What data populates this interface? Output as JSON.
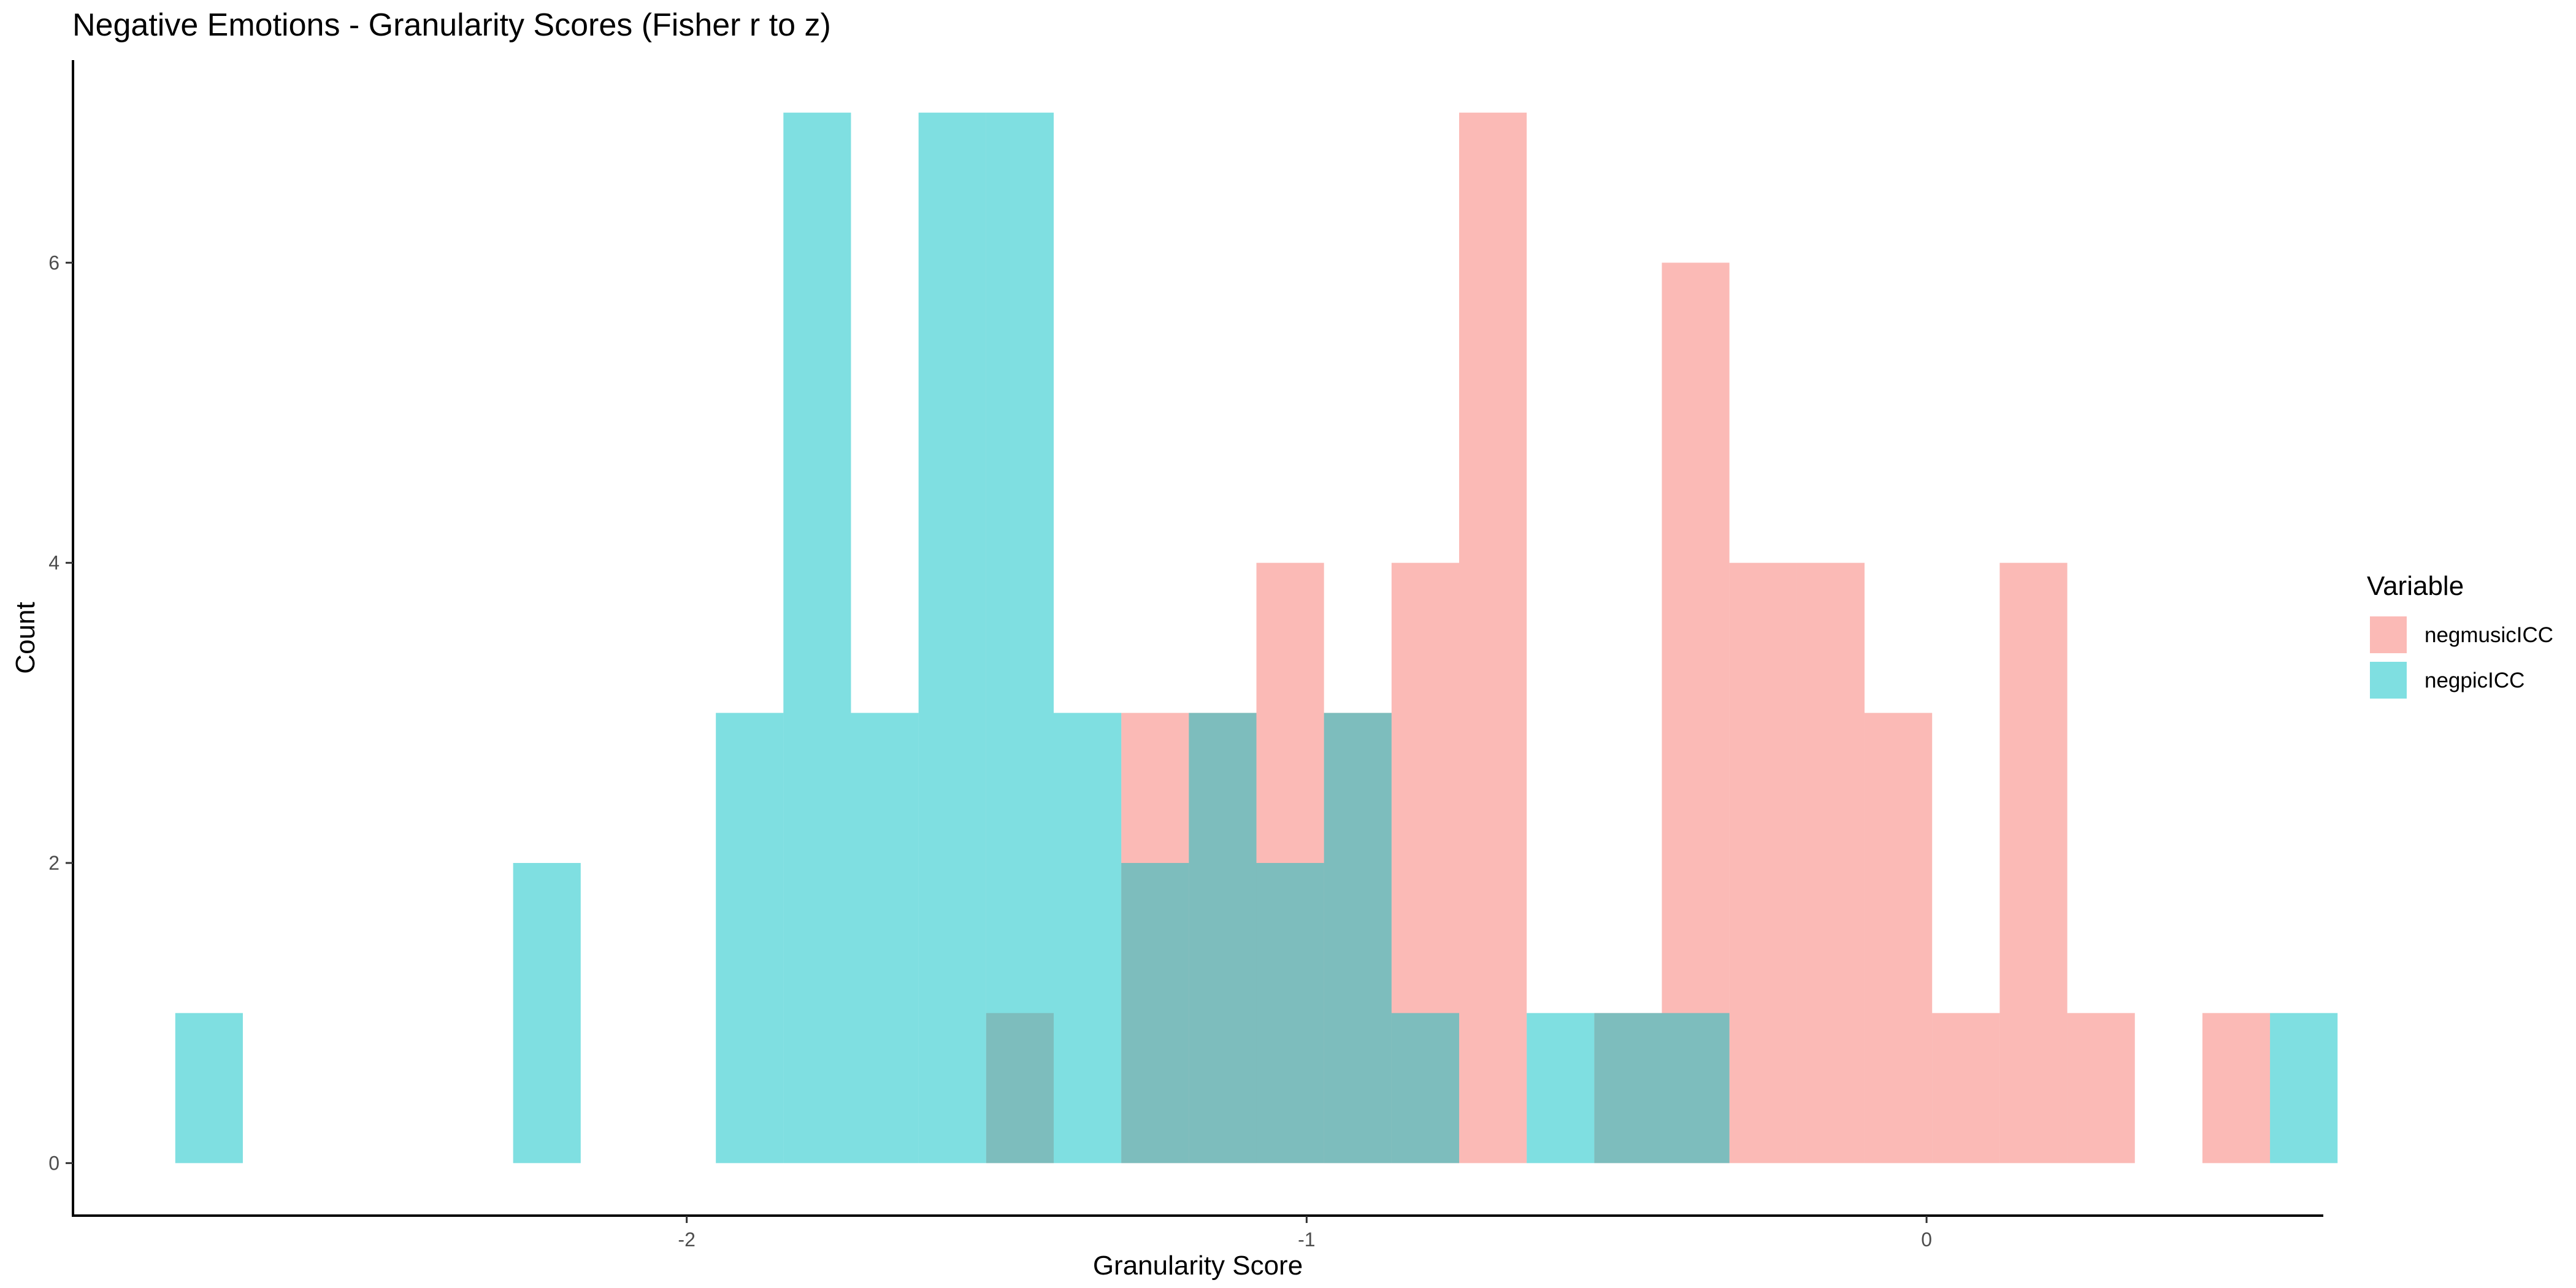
{
  "chart_data": {
    "type": "bar",
    "subtype": "overlapping-histogram",
    "title": "Negative Emotions - Granularity Scores (Fisher r to z)",
    "xlabel": "Granularity Score",
    "ylabel": "Count",
    "xlim": [
      -2.99,
      0.64
    ],
    "ylim": [
      -0.35,
      7.35
    ],
    "x_ticks": [
      -2,
      -1,
      0
    ],
    "x_tick_labels": [
      "-2",
      "-1",
      "0"
    ],
    "y_ticks": [
      0,
      2,
      4,
      6
    ],
    "y_tick_labels": [
      "0",
      "2",
      "4",
      "6"
    ],
    "bin_width": 0.109,
    "bin_start": -2.825,
    "grid": false,
    "legend": {
      "title": "Variable",
      "position": "right"
    },
    "series": [
      {
        "name": "negmusicICC",
        "color": "#F8766D",
        "counts": [
          0,
          0,
          0,
          0,
          0,
          0,
          0,
          0,
          0,
          0,
          0,
          0,
          1,
          0,
          3,
          3,
          4,
          3,
          4,
          7,
          0,
          1,
          6,
          4,
          4,
          3,
          1,
          4,
          1,
          0,
          1,
          0
        ]
      },
      {
        "name": "negpicICC",
        "color": "#00BFC4",
        "counts": [
          1,
          0,
          0,
          0,
          0,
          2,
          0,
          0,
          3,
          7,
          3,
          7,
          7,
          3,
          2,
          3,
          2,
          3,
          1,
          0,
          1,
          1,
          1,
          0,
          0,
          0,
          0,
          0,
          0,
          0,
          0,
          1
        ]
      }
    ]
  }
}
